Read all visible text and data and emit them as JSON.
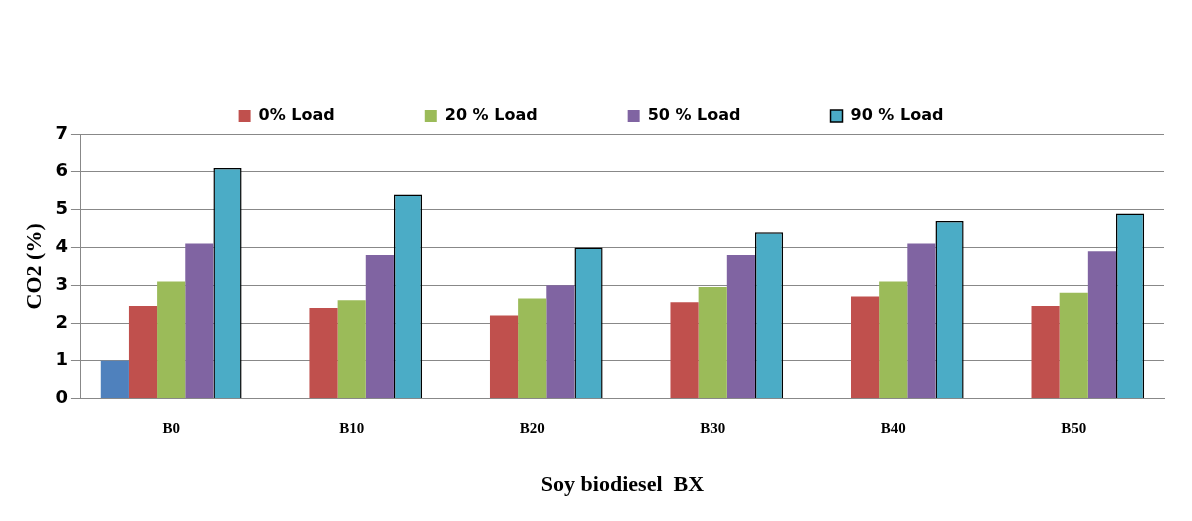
{
  "chart_data": {
    "type": "bar",
    "xlabel": "Soy biodiesel  BX",
    "ylabel": "CO2 (%)",
    "categories": [
      "B0",
      "B10",
      "B20",
      "B30",
      "B40",
      "B50"
    ],
    "series": [
      {
        "color": "#4f81bd",
        "values": [
          1,
          null,
          null,
          null,
          null,
          null
        ]
      },
      {
        "name": "0% Load",
        "color": "#c0504d",
        "values": [
          2.45,
          2.4,
          2.2,
          2.55,
          2.7,
          2.45
        ]
      },
      {
        "name": "20 % Load",
        "color": "#9bbb59",
        "values": [
          3.1,
          2.6,
          2.65,
          2.95,
          3.1,
          2.8
        ]
      },
      {
        "name": "50 % Load",
        "color": "#8064a2",
        "values": [
          4.1,
          3.8,
          3.0,
          3.8,
          4.1,
          3.9
        ]
      },
      {
        "name": "90 % Load",
        "color": "#4bacc6",
        "values": [
          6.1,
          5.4,
          4.0,
          4.4,
          4.7,
          4.9
        ]
      }
    ],
    "ylim": [
      0,
      7
    ],
    "yticks": [
      0,
      1,
      2,
      3,
      4,
      5,
      6,
      7
    ],
    "grid": "y",
    "legend": "top"
  }
}
